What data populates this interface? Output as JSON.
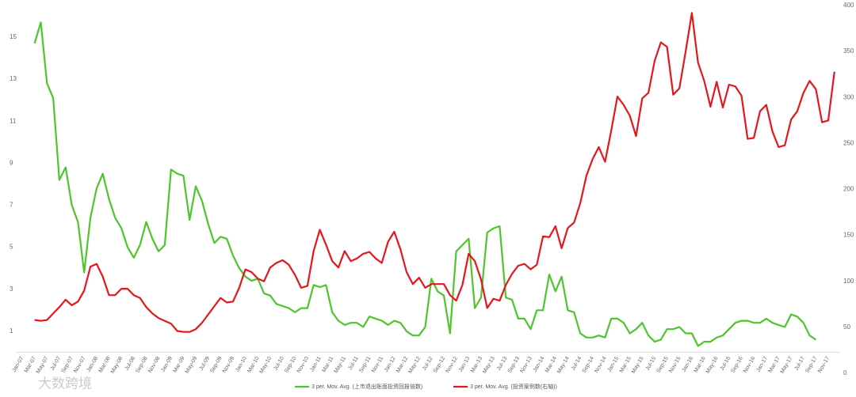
{
  "chart_data": {
    "type": "line",
    "categories": [
      "Jan-07",
      null,
      "Mar-07",
      null,
      "May-07",
      null,
      "Jul-07",
      null,
      "Sep-07",
      null,
      "Nov-07",
      null,
      "Jan-08",
      null,
      "Mar-08",
      null,
      "May-08",
      null,
      "Jul-08",
      null,
      "Sep-08",
      null,
      "Nov-08",
      null,
      "Jan-09",
      null,
      "Mar-09",
      null,
      "May-09",
      null,
      "Jul-09",
      null,
      "Sep-09",
      null,
      "Nov-09",
      null,
      "Jan-10",
      null,
      "Mar-10",
      null,
      "May-10",
      null,
      "Jul-10",
      null,
      "Sep-10",
      null,
      "Nov-10",
      null,
      "Jan-11",
      null,
      "Mar-11",
      null,
      "May-11",
      null,
      "Jul-11",
      null,
      "Sep-11",
      null,
      "Nov-11",
      null,
      "Jan-12",
      null,
      "Mar-12",
      null,
      "May-12",
      null,
      "Jul-12",
      null,
      "Sep-12",
      null,
      "Nov-12",
      null,
      "Jan-13",
      null,
      "Mar-13",
      null,
      "May-13",
      null,
      "Jul-13",
      null,
      "Sep-13",
      null,
      "Nov-13",
      null,
      "Jan-14",
      null,
      "Mar-14",
      null,
      "May-14",
      null,
      "Jul-14",
      null,
      "Sep-14",
      null,
      "Nov-14",
      null,
      "Jan-15",
      null,
      "Mar-15",
      null,
      "May-15",
      null,
      "Jul-15",
      null,
      "Sep-15",
      null,
      "Nov-15",
      null,
      "Jan-16",
      null,
      "Mar-16",
      null,
      "May-16",
      null,
      "Jul-16",
      null,
      "Sep-16",
      null,
      "Nov-16",
      null,
      "Jan-17",
      null,
      "Mar-17",
      null,
      "May-17",
      null,
      "Jul-17",
      null,
      "Sep-17",
      null,
      "Nov-17",
      null
    ],
    "series": [
      {
        "name": "3 per. Mov. Avg. (上市退出账面投资回报倍数)",
        "color": "#4cc62a",
        "values": [
          null,
          null,
          14.7,
          15.7,
          12.8,
          12.1,
          8.2,
          8.8,
          7.0,
          6.2,
          3.8,
          6.4,
          7.8,
          8.5,
          7.3,
          6.4,
          5.9,
          5.0,
          4.5,
          5.1,
          6.2,
          5.4,
          4.8,
          5.1,
          8.7,
          8.5,
          8.4,
          6.3,
          7.9,
          7.2,
          6.1,
          5.2,
          5.5,
          5.4,
          4.6,
          4.0,
          3.6,
          3.4,
          3.5,
          2.8,
          2.7,
          2.3,
          2.2,
          2.1,
          1.9,
          2.1,
          2.1,
          3.2,
          3.1,
          3.2,
          1.9,
          1.5,
          1.3,
          1.4,
          1.4,
          1.2,
          1.7,
          1.6,
          1.5,
          1.3,
          1.5,
          1.4,
          1.0,
          0.8,
          0.8,
          1.2,
          3.5,
          2.9,
          2.7,
          0.9,
          4.8,
          5.1,
          5.4,
          2.1,
          2.6,
          5.7,
          5.9,
          6.0,
          2.6,
          2.5,
          1.6,
          1.6,
          1.1,
          2.0,
          2.0,
          3.7,
          2.9,
          3.6,
          2.0,
          1.9,
          0.9,
          0.7,
          0.7,
          0.8,
          0.7,
          1.6,
          1.6,
          1.4,
          0.9,
          1.1,
          1.4,
          0.8,
          0.5,
          0.6,
          1.1,
          1.1,
          1.2,
          0.9,
          0.9,
          0.3,
          0.5,
          0.5,
          0.7,
          0.8,
          1.1,
          1.4,
          1.5,
          1.5,
          1.4,
          1.4,
          1.6,
          1.4,
          1.3,
          1.2,
          1.8,
          1.7,
          1.4,
          0.8,
          0.6,
          null,
          null,
          null
        ]
      },
      {
        "name": "3 per. Mov. Avg. (投资案例数(右轴))",
        "color": "#e3171c",
        "axis": "y2",
        "values": [
          null,
          null,
          58,
          57,
          58,
          65,
          72,
          80,
          74,
          78,
          90,
          116,
          119,
          105,
          85,
          85,
          92,
          92,
          85,
          82,
          72,
          65,
          60,
          57,
          54,
          46,
          45,
          45,
          48,
          55,
          64,
          73,
          82,
          77,
          78,
          93,
          113,
          110,
          103,
          100,
          115,
          120,
          123,
          118,
          107,
          93,
          95,
          133,
          156,
          140,
          122,
          115,
          133,
          122,
          125,
          130,
          132,
          125,
          120,
          143,
          154,
          135,
          110,
          97,
          104,
          93,
          97,
          97,
          97,
          85,
          79,
          96,
          130,
          122,
          102,
          71,
          81,
          79,
          96,
          108,
          117,
          119,
          113,
          118,
          149,
          148,
          160,
          136,
          158,
          164,
          185,
          215,
          233,
          246,
          230,
          264,
          301,
          292,
          280,
          258,
          299,
          305,
          340,
          360,
          355,
          303,
          310,
          350,
          392,
          338,
          318,
          290,
          317,
          289,
          314,
          312,
          302,
          255,
          256,
          285,
          292,
          263,
          246,
          248,
          276,
          285,
          305,
          318,
          309,
          273,
          275,
          328
        ]
      }
    ],
    "ylim": [
      -1,
      16.5
    ],
    "yticks": [
      1,
      3,
      5,
      7,
      9,
      11,
      13,
      15
    ],
    "y2lim": [
      0,
      400
    ],
    "y2ticks": [
      0,
      50,
      100,
      150,
      200,
      250,
      300,
      350,
      400
    ],
    "watermark": "大数跨境"
  }
}
